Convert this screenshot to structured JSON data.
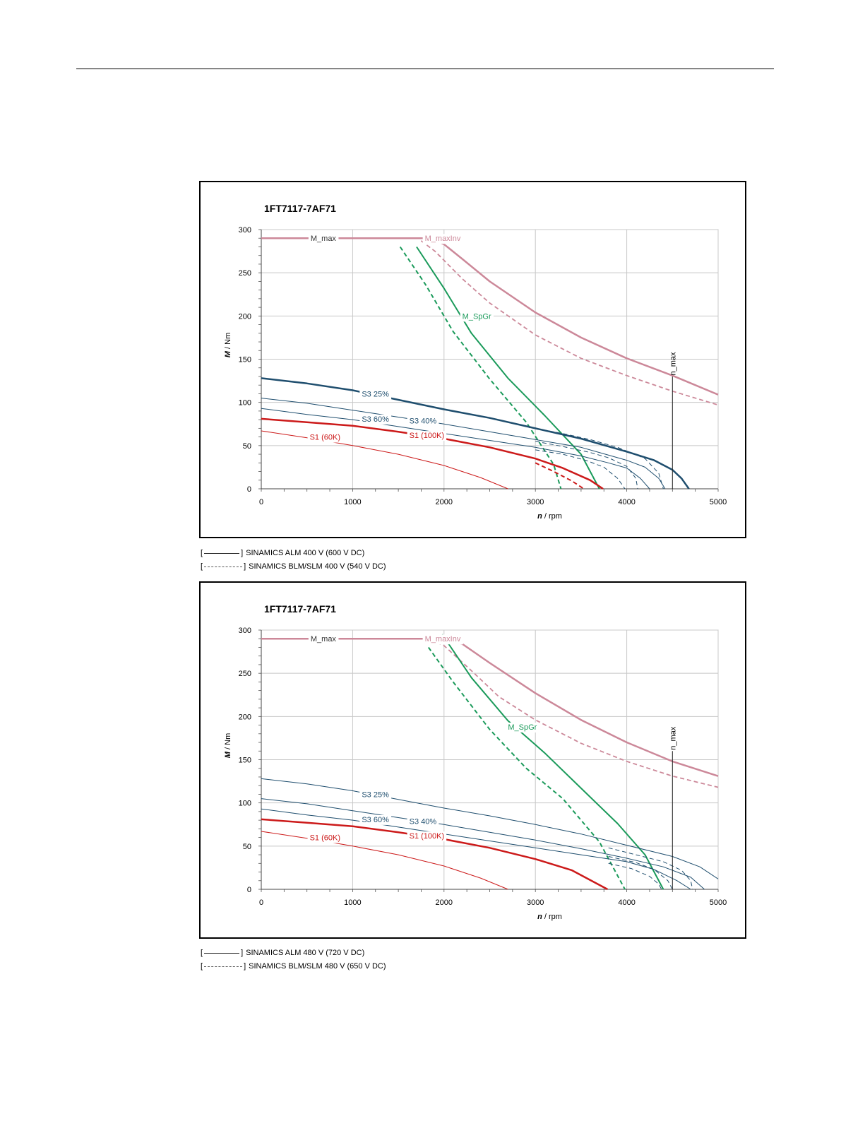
{
  "chart_data": [
    {
      "type": "line",
      "title": "1FT7117-7AF71",
      "xlabel_italic": "n",
      "xlabel": " / rpm",
      "ylabel_italic": "M",
      "ylabel": " / Nm",
      "xlim": [
        0,
        5000
      ],
      "ylim": [
        0,
        300
      ],
      "xticks": [
        0,
        1000,
        2000,
        3000,
        4000,
        5000
      ],
      "yticks": [
        0,
        50,
        100,
        150,
        200,
        250,
        300
      ],
      "grid": true,
      "n_max": {
        "label": "n_max",
        "x": 4500,
        "y_top": 130
      },
      "series": [
        {
          "name": "M_max",
          "color": "#cc8899",
          "width": 2.5,
          "dash": false,
          "x": [
            0,
            1850,
            2000,
            2200,
            2500,
            3000,
            3500,
            4000,
            4500,
            5000
          ],
          "y": [
            290,
            290,
            283,
            266,
            240,
            204,
            175,
            151,
            131,
            109
          ]
        },
        {
          "name": "M_maxInv",
          "color": "#cc8899",
          "width": 1.8,
          "dash": true,
          "x": [
            1750,
            1900,
            2200,
            2500,
            3000,
            3500,
            4000,
            4500,
            5000
          ],
          "y": [
            287,
            275,
            243,
            215,
            178,
            151,
            131,
            113,
            97
          ]
        },
        {
          "name": "M_SpGr",
          "color": "#1a9a5a",
          "width": 2,
          "dash": false,
          "x": [
            1700,
            2000,
            2300,
            2700,
            3100,
            3500,
            3700
          ],
          "y": [
            280,
            232,
            180,
            128,
            85,
            40,
            0
          ]
        },
        {
          "name": "",
          "color": "#1a9a5a",
          "width": 2,
          "dash": true,
          "x": [
            1520,
            1800,
            2100,
            2500,
            2900,
            3200,
            3280
          ],
          "y": [
            280,
            236,
            182,
            127,
            77,
            28,
            0
          ]
        },
        {
          "name": "S3 25%",
          "color": "#1f4e6e",
          "width": 2.5,
          "dash": false,
          "x": [
            0,
            500,
            1000,
            1500,
            2000,
            2500,
            3000,
            3500,
            4000,
            4300,
            4500,
            4600,
            4680
          ],
          "y": [
            128,
            122,
            114,
            103,
            92,
            82,
            70,
            58,
            43,
            33,
            22,
            12,
            0
          ]
        },
        {
          "name": "S3 40%",
          "color": "#1f4e6e",
          "width": 1,
          "dash": false,
          "x": [
            0,
            500,
            1000,
            1500,
            2000,
            2500,
            3000,
            3500,
            4000,
            4200,
            4350,
            4420
          ],
          "y": [
            105,
            99,
            91,
            83,
            75,
            66,
            57,
            48,
            33,
            25,
            12,
            0
          ]
        },
        {
          "name": "S3 60%",
          "color": "#1f4e6e",
          "width": 1,
          "dash": false,
          "x": [
            0,
            500,
            1000,
            1500,
            2000,
            2500,
            3000,
            3500,
            3800,
            4000,
            4150,
            4250
          ],
          "y": [
            93,
            86,
            80,
            72,
            64,
            56,
            48,
            38,
            30,
            24,
            12,
            0
          ]
        },
        {
          "name": "",
          "color": "#1f4e6e",
          "width": 1,
          "dash": true,
          "x": [
            3000,
            3300,
            3600,
            3900,
            4200,
            4350,
            4400
          ],
          "y": [
            70,
            64,
            57,
            48,
            35,
            18,
            0
          ]
        },
        {
          "name": "",
          "color": "#1f4e6e",
          "width": 1,
          "dash": true,
          "x": [
            3000,
            3300,
            3600,
            3800,
            4000,
            4100,
            4120
          ],
          "y": [
            55,
            49,
            42,
            36,
            26,
            12,
            0
          ]
        },
        {
          "name": "",
          "color": "#1f4e6e",
          "width": 1,
          "dash": true,
          "x": [
            3000,
            3300,
            3550,
            3750,
            3900,
            3980
          ],
          "y": [
            45,
            40,
            33,
            25,
            12,
            0
          ]
        },
        {
          "name": "S1 (100K)",
          "color": "#cc1a1a",
          "width": 2.5,
          "dash": false,
          "x": [
            0,
            500,
            1000,
            1500,
            2000,
            2500,
            3000,
            3300,
            3600,
            3740
          ],
          "y": [
            81,
            77,
            73,
            66,
            58,
            48,
            35,
            24,
            10,
            0
          ]
        },
        {
          "name": "",
          "color": "#cc1a1a",
          "width": 2,
          "dash": true,
          "x": [
            3000,
            3200,
            3400,
            3530
          ],
          "y": [
            30,
            20,
            9,
            0
          ]
        },
        {
          "name": "S1 (60K)",
          "color": "#cc1a1a",
          "width": 1,
          "dash": false,
          "x": [
            0,
            500,
            1000,
            1500,
            2000,
            2400,
            2700
          ],
          "y": [
            67,
            59,
            50,
            40,
            27,
            13,
            0
          ]
        }
      ],
      "labels": [
        {
          "text": "M_max",
          "x": 540,
          "y": 290,
          "color": "#333333"
        },
        {
          "text": "M_maxInv",
          "x": 1790,
          "y": 290,
          "color": "#cc8899"
        },
        {
          "text": "M_SpGr",
          "x": 2200,
          "y": 200,
          "color": "#1a9a5a"
        },
        {
          "text": "S3 25%",
          "x": 1100,
          "y": 110,
          "color": "#1f4e6e"
        },
        {
          "text": "S3 60%",
          "x": 1100,
          "y": 81,
          "color": "#1f4e6e"
        },
        {
          "text": "S3 40%",
          "x": 1620,
          "y": 79,
          "color": "#1f4e6e"
        },
        {
          "text": "S1 (60K)",
          "x": 530,
          "y": 60,
          "color": "#cc1a1a"
        },
        {
          "text": "S1 (100K)",
          "x": 1620,
          "y": 62,
          "color": "#cc1a1a"
        }
      ]
    },
    {
      "type": "line",
      "title": "1FT7117-7AF71",
      "xlabel_italic": "n",
      "xlabel": " / rpm",
      "ylabel_italic": "M",
      "ylabel": " / Nm",
      "xlim": [
        0,
        5000
      ],
      "ylim": [
        0,
        300
      ],
      "xticks": [
        0,
        1000,
        2000,
        3000,
        4000,
        5000
      ],
      "yticks": [
        0,
        50,
        100,
        150,
        200,
        250,
        300
      ],
      "grid": true,
      "n_max": {
        "label": "n_max",
        "x": 4500,
        "y_top": 160
      },
      "series": [
        {
          "name": "M_max",
          "color": "#cc8899",
          "width": 2.5,
          "dash": false,
          "x": [
            0,
            2000,
            2200,
            2500,
            3000,
            3500,
            4000,
            4500,
            5000
          ],
          "y": [
            290,
            290,
            284,
            262,
            227,
            196,
            170,
            148,
            131
          ]
        },
        {
          "name": "M_maxInv",
          "color": "#cc8899",
          "width": 1.8,
          "dash": true,
          "x": [
            1850,
            2000,
            2300,
            2600,
            3000,
            3500,
            4000,
            4500,
            5000
          ],
          "y": [
            289,
            282,
            253,
            223,
            196,
            169,
            148,
            131,
            118
          ]
        },
        {
          "name": "M_SpGr",
          "color": "#1a9a5a",
          "width": 2,
          "dash": false,
          "x": [
            1980,
            2300,
            2700,
            3100,
            3500,
            3900,
            4200,
            4400
          ],
          "y": [
            295,
            245,
            195,
            158,
            117,
            76,
            40,
            0
          ]
        },
        {
          "name": "",
          "color": "#1a9a5a",
          "width": 2,
          "dash": true,
          "x": [
            1830,
            2100,
            2500,
            2900,
            3300,
            3700,
            3980
          ],
          "y": [
            280,
            240,
            185,
            140,
            105,
            55,
            0
          ]
        },
        {
          "name": "S3 25%",
          "color": "#1f4e6e",
          "width": 1,
          "dash": false,
          "x": [
            0,
            500,
            1000,
            1500,
            2000,
            2500,
            3000,
            3500,
            4000,
            4500,
            4800,
            5000
          ],
          "y": [
            128,
            122,
            114,
            104,
            94,
            85,
            75,
            64,
            51,
            38,
            26,
            12
          ]
        },
        {
          "name": "S3 40%",
          "color": "#1f4e6e",
          "width": 1,
          "dash": false,
          "x": [
            0,
            500,
            1000,
            1500,
            2000,
            2500,
            3000,
            3500,
            4000,
            4400,
            4700,
            4850
          ],
          "y": [
            105,
            99,
            91,
            83,
            75,
            66,
            57,
            47,
            36,
            26,
            14,
            0
          ]
        },
        {
          "name": "S3 60%",
          "color": "#1f4e6e",
          "width": 1,
          "dash": false,
          "x": [
            0,
            500,
            1000,
            1500,
            2000,
            2500,
            3000,
            3500,
            4000,
            4300,
            4550,
            4700
          ],
          "y": [
            93,
            86,
            80,
            72,
            64,
            56,
            48,
            40,
            32,
            23,
            10,
            0
          ]
        },
        {
          "name": "",
          "color": "#1f4e6e",
          "width": 1,
          "dash": true,
          "x": [
            3800,
            4100,
            4400,
            4600,
            4700,
            4720
          ],
          "y": [
            48,
            40,
            32,
            22,
            10,
            0
          ]
        },
        {
          "name": "",
          "color": "#1f4e6e",
          "width": 1,
          "dash": true,
          "x": [
            3800,
            4100,
            4300,
            4450,
            4500
          ],
          "y": [
            38,
            31,
            23,
            10,
            0
          ]
        },
        {
          "name": "",
          "color": "#1f4e6e",
          "width": 1,
          "dash": true,
          "x": [
            3800,
            4050,
            4250,
            4350,
            4380
          ],
          "y": [
            30,
            24,
            15,
            6,
            0
          ]
        },
        {
          "name": "S1 (100K)",
          "color": "#cc1a1a",
          "width": 2.5,
          "dash": false,
          "x": [
            0,
            500,
            1000,
            1500,
            2000,
            2500,
            3000,
            3400,
            3790
          ],
          "y": [
            81,
            77,
            73,
            66,
            58,
            48,
            35,
            22,
            0
          ]
        },
        {
          "name": "S1 (60K)",
          "color": "#cc1a1a",
          "width": 1,
          "dash": false,
          "x": [
            0,
            500,
            1000,
            1500,
            2000,
            2400,
            2700
          ],
          "y": [
            67,
            59,
            50,
            40,
            27,
            13,
            0
          ]
        }
      ],
      "labels": [
        {
          "text": "M_max",
          "x": 540,
          "y": 290,
          "color": "#333333"
        },
        {
          "text": "M_maxInv",
          "x": 1790,
          "y": 290,
          "color": "#cc8899"
        },
        {
          "text": "M_SpGr",
          "x": 2700,
          "y": 188,
          "color": "#1a9a5a"
        },
        {
          "text": "S3 25%",
          "x": 1100,
          "y": 110,
          "color": "#1f4e6e"
        },
        {
          "text": "S3 60%",
          "x": 1100,
          "y": 81,
          "color": "#1f4e6e"
        },
        {
          "text": "S3 40%",
          "x": 1620,
          "y": 79,
          "color": "#1f4e6e"
        },
        {
          "text": "S1 (60K)",
          "x": 530,
          "y": 60,
          "color": "#cc1a1a"
        },
        {
          "text": "S1 (100K)",
          "x": 1620,
          "y": 62,
          "color": "#cc1a1a"
        }
      ]
    }
  ],
  "legend_1": {
    "solid": {
      "open": "[",
      "close": "]",
      "text": "SINAMICS ALM 400 V (600 V DC)"
    },
    "dashed": {
      "open": "[",
      "close": "]",
      "text": "SINAMICS BLM/SLM 400 V (540 V DC)"
    }
  },
  "legend_2": {
    "solid": {
      "open": "[",
      "close": "]",
      "text": "SINAMICS ALM 480 V (720 V DC)"
    },
    "dashed": {
      "open": "[",
      "close": "]",
      "text": "SINAMICS BLM/SLM 480 V (650 V DC)"
    }
  }
}
